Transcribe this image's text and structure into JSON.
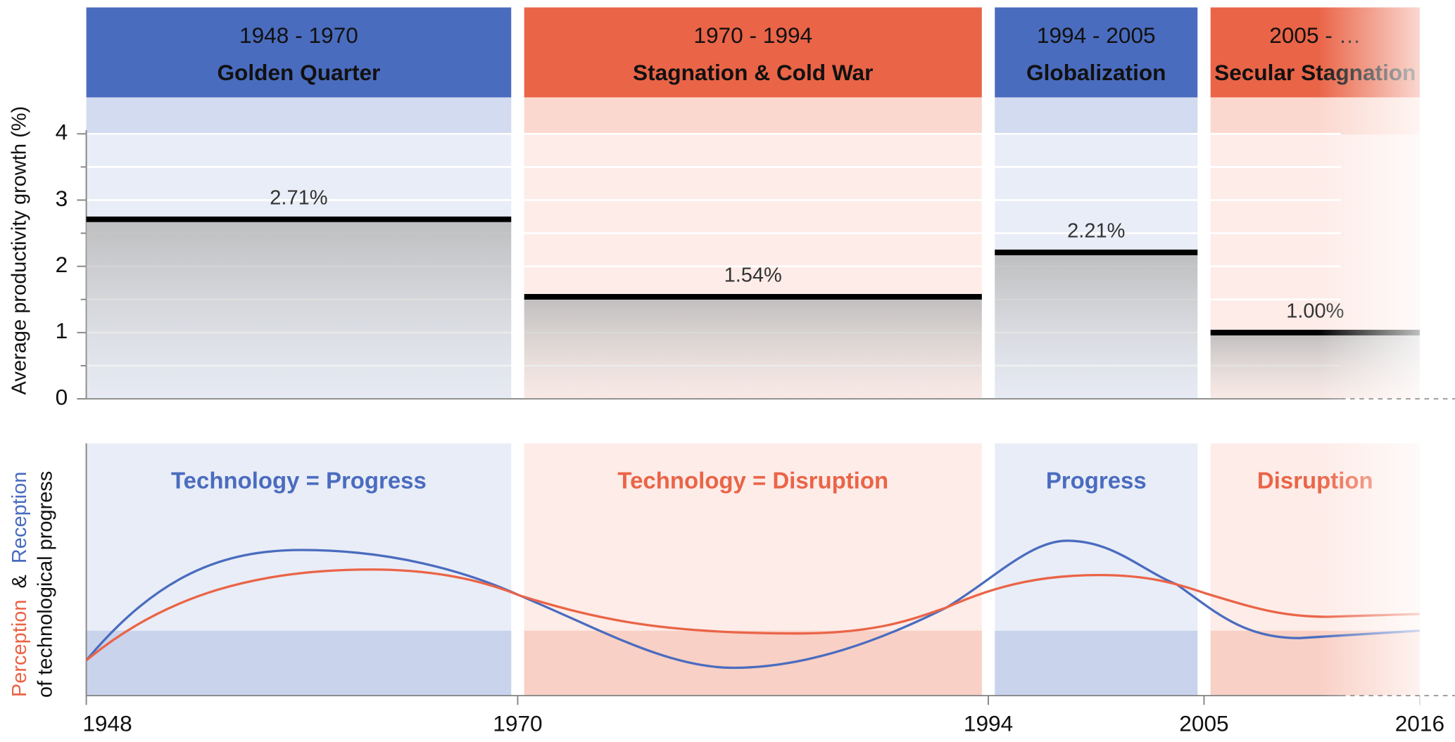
{
  "chart_data": {
    "type": "period-bar",
    "ylabel": "Average productivity growth (%)",
    "ylim": [
      0,
      4.55
    ],
    "yticks": [
      0,
      1,
      2,
      3,
      4
    ],
    "minor_yticks": [
      0.5,
      1.5,
      2.5,
      3.5
    ],
    "grid": true,
    "xlim": [
      1948,
      2016
    ],
    "xticks": [
      1948,
      1970,
      1994,
      2005,
      2016
    ],
    "ranges": [
      "1948 - 1970",
      "1970 - 1994",
      "1994 - 2005",
      "2005 - …"
    ],
    "categories": [
      "Golden Quarter",
      "Stagnation & Cold War",
      "Globalization",
      "Secular Stagnation"
    ],
    "x_start": [
      1948,
      1970,
      1994,
      2005
    ],
    "x_end": [
      1970,
      1994,
      2005,
      2016
    ],
    "values": [
      2.71,
      1.54,
      2.21,
      1.0
    ],
    "value_labels": [
      "2.71%",
      "1.54%",
      "2.21%",
      "1.00%"
    ],
    "colors": [
      "#4a6cbf",
      "#ea6447",
      "#4a6cbf",
      "#ea6447"
    ],
    "captions": [
      "Technology = Progress",
      "Technology = Disruption",
      "Progress",
      "Disruption"
    ],
    "lower_ylabel": {
      "perception": "Perception",
      "and": "&",
      "reception": "Reception",
      "line2": "of technological progress"
    }
  }
}
